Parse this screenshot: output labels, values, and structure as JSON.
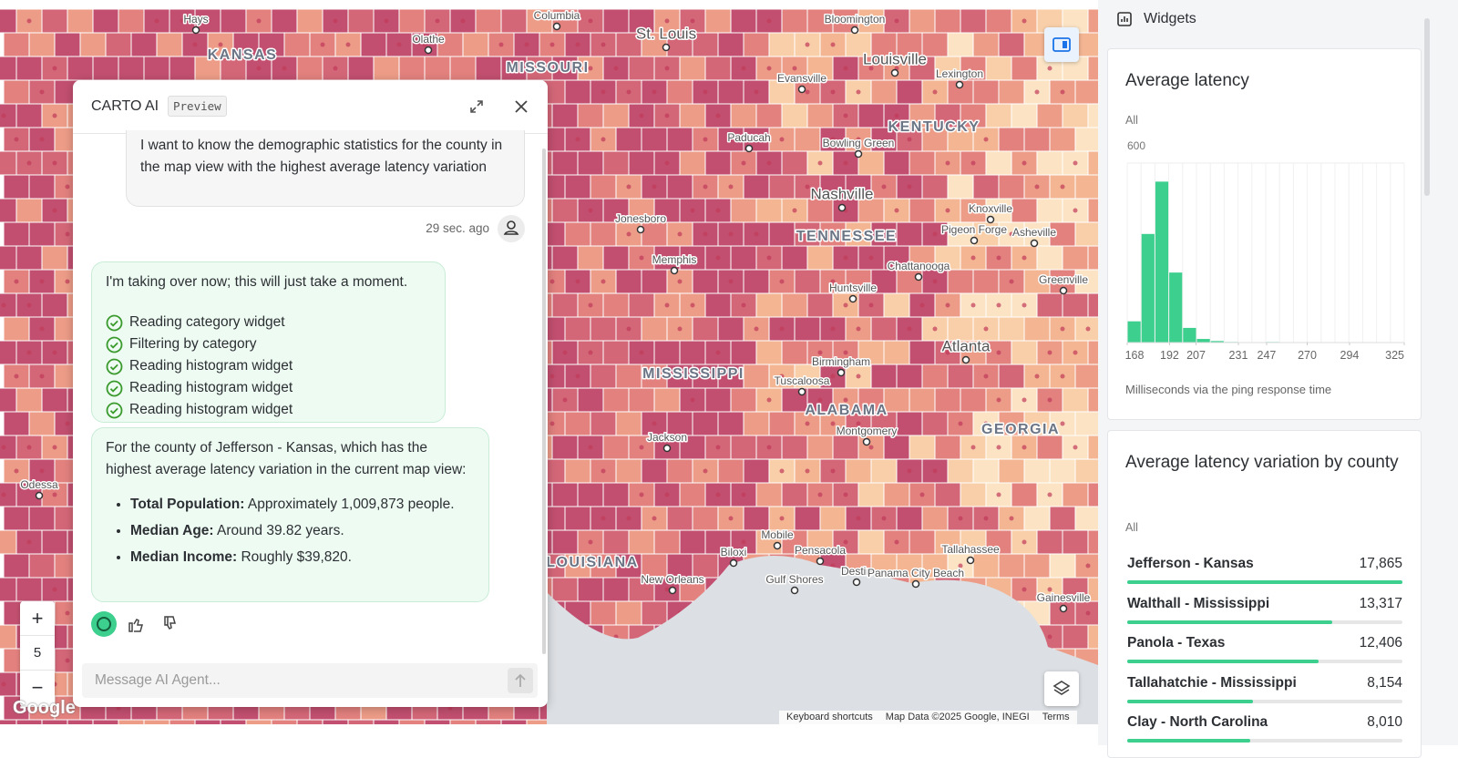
{
  "map": {
    "labels": [
      "Hays",
      "KANSAS",
      "Olathe",
      "Columbia",
      "St. Louis",
      "MISSOURI",
      "Bloomington",
      "Louisville",
      "Lexington",
      "Evansville",
      "KENTUCKY",
      "Paducah",
      "Bowling Green",
      "Nashville",
      "Knoxville",
      "TENNESSEE",
      "Jonesboro",
      "Memphis",
      "Pigeon Forge",
      "Asheville",
      "Chattanooga",
      "Huntsville",
      "Greenville",
      "Atlanta",
      "Birmingham",
      "MISSISSIPPI",
      "Tuscaloosa",
      "ALABAMA",
      "Montgomery",
      "GEORGIA",
      "Jackson",
      "Mobile",
      "Biloxi",
      "Pensacola",
      "Destin",
      "Tallahassee",
      "Gulf Shores",
      "Panama City Beach",
      "New Orleans",
      "LOUISIANA",
      "Gainesville",
      "Odessa"
    ],
    "zoom_in": "+",
    "zoom": "5",
    "zoom_out": "−",
    "logo": "Google",
    "attribution": [
      "Keyboard shortcuts",
      "Map Data ©2025 Google, INEGI",
      "Terms"
    ]
  },
  "chat": {
    "title": "CARTO AI",
    "badge": "Preview",
    "user_message": "I want to know the demographic statistics for the county in the map view with the highest average latency variation",
    "timestamp": "29 sec. ago",
    "reply_intro": "I'm taking over now; this will just take a moment.",
    "steps": [
      "Reading category widget",
      "Filtering by category",
      "Reading histogram widget",
      "Reading histogram widget",
      "Reading histogram widget"
    ],
    "answer_intro": "For the county of Jefferson - Kansas, which has the highest average latency variation in the current map view:",
    "answer_items": [
      {
        "label": "Total Population:",
        "text": "Approximately 1,009,873 people."
      },
      {
        "label": "Median Age:",
        "text": "Around 39.82 years."
      },
      {
        "label": "Median Income:",
        "text": "Roughly $39,820."
      }
    ],
    "input_placeholder": "Message AI Agent..."
  },
  "widgets": {
    "header": "Widgets",
    "histogram": {
      "type": "histogram",
      "title": "Average latency",
      "filter": "All",
      "bins": [
        168,
        175.85,
        183.7,
        191.55,
        199.4,
        207.25,
        215.1,
        222.95,
        230.8,
        238.65,
        246.5,
        254.35,
        262.2,
        270.05,
        277.9,
        285.75,
        293.6,
        301.45,
        309.3,
        317.15,
        325
      ],
      "values": [
        71,
        363,
        538,
        234,
        49,
        12,
        5,
        2,
        0,
        0,
        2,
        0,
        0,
        0,
        0,
        0,
        0,
        0,
        0,
        0
      ],
      "color": "#3ccf8e",
      "xlim": [
        168,
        325
      ],
      "xticks": [
        168,
        192,
        207,
        231,
        247,
        270,
        294,
        325
      ],
      "ylim": [
        0,
        600
      ],
      "yticks": [
        600
      ],
      "caption": "Milliseconds via the ping response time"
    },
    "category": {
      "type": "bar",
      "title": "Average latency variation by county",
      "filter": "All",
      "categories": [
        "Jefferson - Kansas",
        "Walthall - Mississippi",
        "Panola - Texas",
        "Tallahatchie - Mississippi",
        "Clay - North Carolina"
      ],
      "values": [
        17865,
        13317,
        12406,
        8154,
        8010
      ],
      "value_labels": [
        "17,865",
        "13,317",
        "12,406",
        "8,154",
        "8,010"
      ],
      "color": "#3ccf8e"
    }
  }
}
